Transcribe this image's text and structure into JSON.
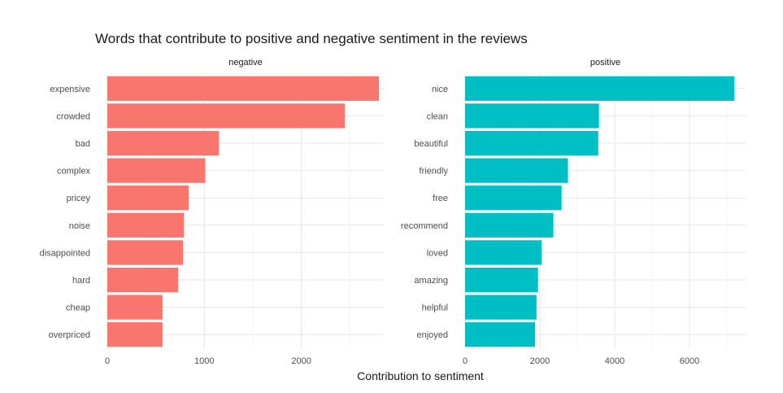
{
  "chart_data": {
    "type": "bar",
    "orientation": "horizontal",
    "title": "Words that contribute to positive and negative sentiment in the reviews",
    "xlabel": "Contribution to sentiment",
    "ylabel": "",
    "grid": true,
    "panels": [
      {
        "name": "negative",
        "color": "#F8766D",
        "xlim": [
          0,
          2850
        ],
        "ticks": [
          0,
          1000,
          2000
        ],
        "tick_labels": [
          "0",
          "1000",
          "2000"
        ],
        "categories": [
          "expensive",
          "crowded",
          "bad",
          "complex",
          "pricey",
          "noise",
          "disappointed",
          "hard",
          "cheap",
          "overpriced"
        ],
        "values": [
          2800,
          2450,
          1150,
          1010,
          840,
          790,
          780,
          730,
          570,
          570
        ]
      },
      {
        "name": "positive",
        "color": "#00BFC4",
        "xlim": [
          0,
          7500
        ],
        "ticks": [
          0,
          2000,
          4000,
          6000
        ],
        "tick_labels": [
          "0",
          "2000",
          "4000",
          "6000"
        ],
        "categories": [
          "nice",
          "clean",
          "beautiful",
          "friendly",
          "free",
          "recommend",
          "loved",
          "amazing",
          "helpful",
          "enjoyed"
        ],
        "values": [
          7200,
          3580,
          3560,
          2750,
          2580,
          2360,
          2050,
          1950,
          1910,
          1870
        ]
      }
    ]
  }
}
